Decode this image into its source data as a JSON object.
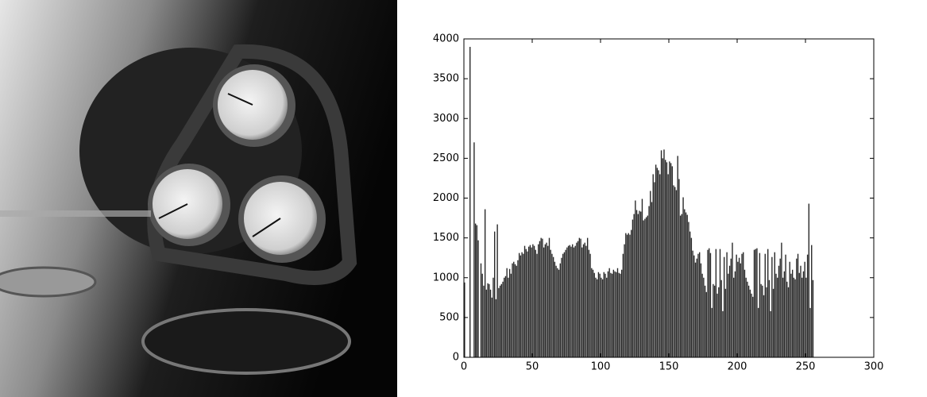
{
  "chart_data": {
    "type": "histogram",
    "values": [
      940,
      0,
      0,
      0,
      3900,
      0,
      0,
      2700,
      1680,
      1660,
      1470,
      0,
      1180,
      1050,
      900,
      1860,
      850,
      930,
      920,
      850,
      750,
      1000,
      1580,
      730,
      1670,
      870,
      900,
      920,
      950,
      1000,
      1020,
      1120,
      1000,
      1110,
      1050,
      1180,
      1200,
      1170,
      1150,
      1220,
      1310,
      1280,
      1320,
      1300,
      1400,
      1360,
      1330,
      1390,
      1410,
      1380,
      1420,
      1400,
      1350,
      1300,
      1420,
      1460,
      1500,
      1490,
      1380,
      1420,
      1440,
      1400,
      1500,
      1350,
      1300,
      1260,
      1200,
      1150,
      1120,
      1100,
      1180,
      1250,
      1300,
      1320,
      1350,
      1380,
      1400,
      1410,
      1390,
      1420,
      1380,
      1400,
      1440,
      1460,
      1500,
      1490,
      1380,
      1420,
      1440,
      1400,
      1500,
      1350,
      1300,
      1120,
      1100,
      1060,
      1000,
      980,
      1070,
      1050,
      1000,
      980,
      1070,
      1050,
      1000,
      1080,
      1120,
      1060,
      1050,
      1100,
      1080,
      1070,
      1120,
      1060,
      1050,
      1100,
      1300,
      1420,
      1560,
      1540,
      1560,
      1540,
      1600,
      1730,
      1800,
      1970,
      1850,
      1800,
      1840,
      1830,
      1990,
      1720,
      1740,
      1760,
      1780,
      1900,
      2090,
      1950,
      2300,
      2200,
      2420,
      2380,
      2350,
      2300,
      2600,
      2500,
      2610,
      2480,
      2450,
      2300,
      2460,
      2440,
      2400,
      2160,
      2140,
      2100,
      2530,
      2240,
      1780,
      1800,
      2010,
      1860,
      1820,
      1790,
      1700,
      1580,
      1500,
      1340,
      1280,
      1190,
      1240,
      1300,
      1320,
      1180,
      1050,
      1000,
      900,
      820,
      1350,
      1370,
      1310,
      620,
      920,
      900,
      1360,
      800,
      880,
      1360,
      970,
      580,
      1260,
      860,
      1320,
      1050,
      1150,
      1240,
      1440,
      1000,
      1080,
      1290,
      1200,
      1250,
      1180,
      1300,
      1320,
      1100,
      1000,
      950,
      900,
      850,
      800,
      760,
      1350,
      1360,
      1370,
      620,
      1310,
      920,
      900,
      780,
      1300,
      880,
      1360,
      970,
      580,
      1260,
      860,
      1320,
      1050,
      1000,
      1150,
      1240,
      1440,
      1000,
      1080,
      1290,
      950,
      880,
      1200,
      1050,
      1100,
      1000,
      980,
      1240,
      1300,
      1060,
      1150,
      1000,
      1080,
      1200,
      1000,
      1290,
      1930,
      620,
      1410,
      970
    ],
    "bins": [
      0,
      1,
      2,
      3,
      4,
      5,
      6,
      7,
      8,
      9,
      10,
      11,
      12,
      13,
      14,
      15,
      16,
      17,
      18,
      19,
      20,
      21,
      22,
      23,
      24,
      25,
      26,
      27,
      28,
      29,
      30,
      31,
      32,
      33,
      34,
      35,
      36,
      37,
      38,
      39,
      40,
      41,
      42,
      43,
      44,
      45,
      46,
      47,
      48,
      49,
      50,
      51,
      52,
      53,
      54,
      55,
      56,
      57,
      58,
      59,
      60,
      61,
      62,
      63,
      64,
      65,
      66,
      67,
      68,
      69,
      70,
      71,
      72,
      73,
      74,
      75,
      76,
      77,
      78,
      79,
      80,
      81,
      82,
      83,
      84,
      85,
      86,
      87,
      88,
      89,
      90,
      91,
      92,
      93,
      94,
      95,
      96,
      97,
      98,
      99,
      100,
      101,
      102,
      103,
      104,
      105,
      106,
      107,
      108,
      109,
      110,
      111,
      112,
      113,
      114,
      115,
      116,
      117,
      118,
      119,
      120,
      121,
      122,
      123,
      124,
      125,
      126,
      127,
      128,
      129,
      130,
      131,
      132,
      133,
      134,
      135,
      136,
      137,
      138,
      139,
      140,
      141,
      142,
      143,
      144,
      145,
      146,
      147,
      148,
      149,
      150,
      151,
      152,
      153,
      154,
      155,
      156,
      157,
      158,
      159,
      160,
      161,
      162,
      163,
      164,
      165,
      166,
      167,
      168,
      169,
      170,
      171,
      172,
      173,
      174,
      175,
      176,
      177,
      178,
      179,
      180,
      181,
      182,
      183,
      184,
      185,
      186,
      187,
      188,
      189,
      190,
      191,
      192,
      193,
      194,
      195,
      196,
      197,
      198,
      199,
      200,
      201,
      202,
      203,
      204,
      205,
      206,
      207,
      208,
      209,
      210,
      211,
      212,
      213,
      214,
      215,
      216,
      217,
      218,
      219,
      220,
      221,
      222,
      223,
      224,
      225,
      226,
      227,
      228,
      229,
      230,
      231,
      232,
      233,
      234,
      235,
      236,
      237,
      238,
      239,
      240,
      241,
      242,
      243,
      244,
      245,
      246,
      247,
      248,
      249,
      250,
      251,
      252,
      253,
      254,
      255,
      256
    ],
    "color": "#262626",
    "xlim": [
      0,
      300
    ],
    "xticks": [
      0,
      50,
      100,
      150,
      200,
      250,
      300
    ],
    "ylim": [
      0,
      4000
    ],
    "yticks": [
      0,
      500,
      1000,
      1500,
      2000,
      2500,
      3000,
      3500,
      4000
    ],
    "grid": false
  }
}
